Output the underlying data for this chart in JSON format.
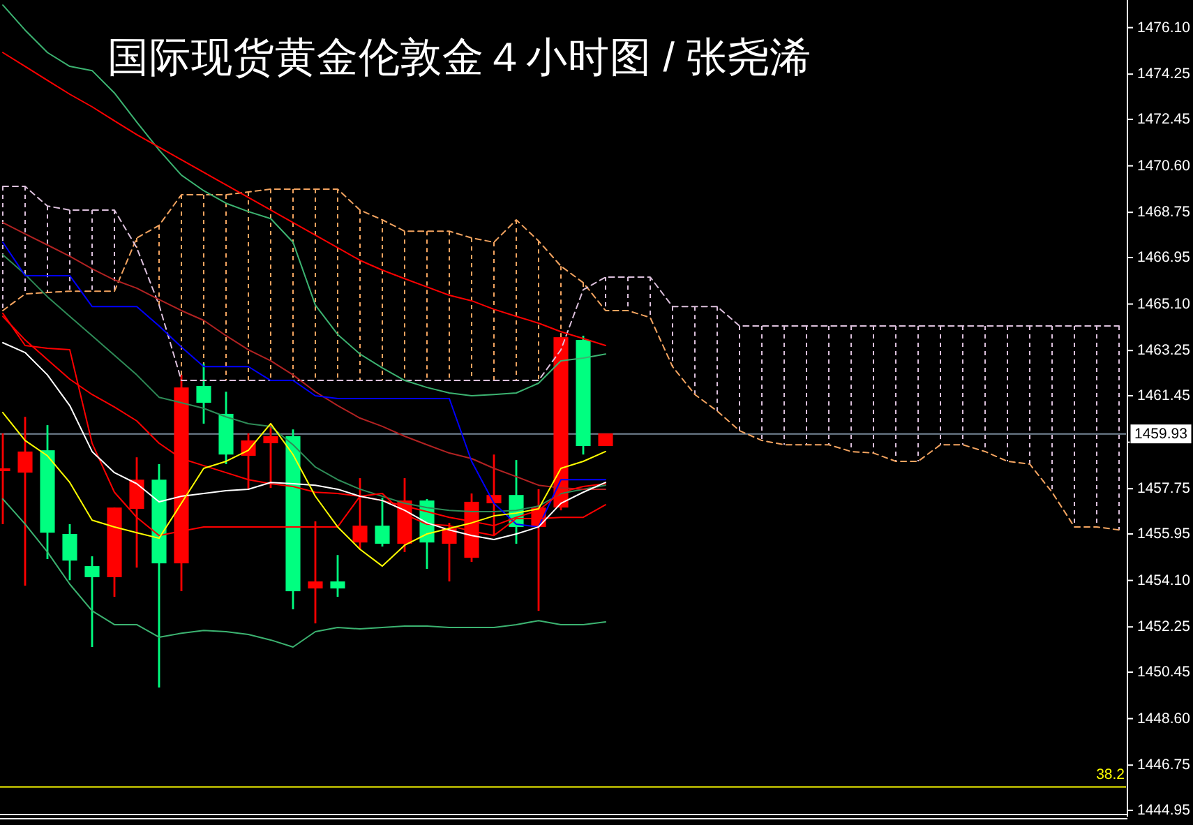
{
  "chart_data": {
    "type": "candlestick",
    "title": "国际现货黄金伦敦金４小时图 / 张尧浠",
    "categories": [
      null,
      null,
      null,
      null,
      null,
      null,
      null,
      null,
      null,
      null,
      null,
      null,
      null,
      null,
      null,
      null,
      null,
      null,
      null,
      null,
      null,
      null,
      null,
      null,
      null,
      null,
      null,
      null,
      null,
      null,
      null,
      null,
      null,
      null,
      null,
      null,
      null,
      null,
      null,
      null,
      null,
      null,
      null,
      null,
      null,
      null,
      null,
      null,
      null,
      null,
      null
    ],
    "ohlc": [
      [
        1458.45,
        1459.95,
        1456.34,
        1458.56
      ],
      [
        1458.39,
        1460.61,
        1453.89,
        1459.23
      ],
      [
        1459.28,
        1460.28,
        1454.95,
        1456.0
      ],
      [
        1455.95,
        1456.34,
        1454.11,
        1454.89
      ],
      [
        1454.67,
        1455.06,
        1451.45,
        1454.23
      ],
      [
        1454.23,
        1457.0,
        1453.45,
        1457.0
      ],
      [
        1456.95,
        1459.0,
        1454.61,
        1458.11
      ],
      [
        1458.11,
        1458.73,
        1449.84,
        1454.78
      ],
      [
        1454.78,
        1462.28,
        1453.67,
        1461.78
      ],
      [
        1461.84,
        1462.73,
        1460.34,
        1461.17
      ],
      [
        1460.73,
        1461.61,
        1458.73,
        1459.11
      ],
      [
        1459.06,
        1459.95,
        1457.73,
        1459.67
      ],
      [
        1459.56,
        1460.34,
        1457.78,
        1459.84
      ],
      [
        1459.84,
        1460.11,
        1452.95,
        1453.67
      ],
      [
        1453.78,
        1456.45,
        1452.39,
        1454.06
      ],
      [
        1454.06,
        1455.11,
        1453.45,
        1453.78
      ],
      [
        1455.61,
        1458.17,
        1455.34,
        1456.28
      ],
      [
        1456.28,
        1457.39,
        1455.45,
        1455.56
      ],
      [
        1455.56,
        1458.17,
        1455.23,
        1457.28
      ],
      [
        1457.28,
        1457.34,
        1454.56,
        1455.61
      ],
      [
        1455.56,
        1456.39,
        1454.06,
        1456.17
      ],
      [
        1455.0,
        1457.56,
        1454.84,
        1457.23
      ],
      [
        1457.17,
        1459.11,
        1455.89,
        1457.5
      ],
      [
        1457.5,
        1458.89,
        1455.56,
        1456.23
      ],
      [
        1456.23,
        1457.73,
        1452.89,
        1457.0
      ],
      [
        1457.0,
        1463.78,
        1456.89,
        1463.78
      ],
      [
        1463.67,
        1463.84,
        1459.11,
        1459.45
      ],
      [
        1459.45,
        1459.95,
        1459.45,
        1459.95
      ],
      null,
      null,
      null,
      null,
      null,
      null,
      null,
      null,
      null,
      null,
      null,
      null,
      null,
      null,
      null,
      null,
      null,
      null,
      null,
      null,
      null,
      null,
      null
    ],
    "colors": [
      "#ff0000",
      "#ff0000",
      "#00ff80",
      "#00ff80",
      "#00ff80",
      "#ff0000",
      "#ff0000",
      "#00ff80",
      "#ff0000",
      "#00ff80",
      "#00ff80",
      "#ff0000",
      "#ff0000",
      "#00ff80",
      "#ff0000",
      "#00ff80",
      "#ff0000",
      "#00ff80",
      "#ff0000",
      "#00ff80",
      "#ff0000",
      "#ff0000",
      "#ff0000",
      "#00ff80",
      "#ff0000",
      "#ff0000",
      "#00ff80",
      "#ff0000",
      null,
      null,
      null,
      null,
      null,
      null,
      null,
      null,
      null,
      null,
      null,
      null,
      null,
      null,
      null,
      null,
      null,
      null,
      null,
      null,
      null,
      null,
      null
    ],
    "ylim": [
      1444.7,
      1477.2
    ],
    "yticks": [
      {
        "value": 1476.1,
        "label": "1476.10"
      },
      {
        "value": 1474.25,
        "label": "1474.25"
      },
      {
        "value": 1472.45,
        "label": "1472.45"
      },
      {
        "value": 1470.6,
        "label": "1470.60"
      },
      {
        "value": 1468.75,
        "label": "1468.75"
      },
      {
        "value": 1466.95,
        "label": "1466.95"
      },
      {
        "value": 1465.1,
        "label": "1465.10"
      },
      {
        "value": 1463.25,
        "label": "1463.25"
      },
      {
        "value": 1461.45,
        "label": "1461.45"
      },
      {
        "value": 1459.6,
        "label": null
      },
      {
        "value": 1457.75,
        "label": "1457.75"
      },
      {
        "value": 1455.95,
        "label": "1455.95"
      },
      {
        "value": 1454.1,
        "label": "1454.10"
      },
      {
        "value": 1452.25,
        "label": "1452.25"
      },
      {
        "value": 1450.45,
        "label": "1450.45"
      },
      {
        "value": 1448.6,
        "label": "1448.60"
      },
      {
        "value": 1446.75,
        "label": "1446.75"
      },
      {
        "value": 1444.95,
        "label": "1444.95"
      }
    ],
    "tick_labels": "y",
    "series": [
      {
        "type": "line",
        "color": "#f4a460",
        "line_style": "dashed",
        "values": [
          1464.84,
          1465.5,
          1465.56,
          1465.61,
          1465.61,
          1465.61,
          1467.73,
          1468.23,
          1469.45,
          1469.45,
          1469.45,
          1469.56,
          1469.67,
          1469.67,
          1469.67,
          1469.67,
          1468.84,
          1468.45,
          1468.0,
          1468.0,
          1468.0,
          1467.73,
          1467.56,
          1468.45,
          1467.61,
          1466.61,
          1465.95,
          1464.84,
          1464.84,
          1464.56,
          1462.61,
          1461.5,
          1460.84,
          1460.06,
          1459.67,
          1459.5,
          1459.5,
          1459.5,
          1459.23,
          1459.17,
          1458.84,
          1458.84,
          1459.5,
          1459.5,
          1459.23,
          1458.84,
          1458.73,
          1457.61,
          1456.23,
          1456.23,
          1456.11
        ]
      },
      {
        "type": "line",
        "color": "#dcc0dc",
        "line_style": "dashed",
        "values": [
          1469.78,
          1469.78,
          1469.0,
          1468.84,
          1468.84,
          1468.84,
          1467.34,
          1465.06,
          1462.06,
          1462.06,
          1462.06,
          1462.06,
          1462.06,
          1462.06,
          1462.06,
          1462.06,
          1462.06,
          1462.06,
          1462.06,
          1462.06,
          1462.06,
          1462.06,
          1462.06,
          1462.06,
          1462.06,
          1463.28,
          1465.67,
          1466.17,
          1466.17,
          1466.17,
          1465.0,
          1465.0,
          1465.0,
          1464.23,
          1464.23,
          1464.23,
          1464.23,
          1464.23,
          1464.23,
          1464.23,
          1464.23,
          1464.23,
          1464.23,
          1464.23,
          1464.23,
          1464.23,
          1464.23,
          1464.23,
          1464.23,
          1464.23,
          1464.23
        ]
      },
      {
        "type": "line",
        "color": "#3cb371",
        "values": [
          1477.0,
          1476.0,
          1475.11,
          1474.56,
          1474.39,
          1473.5,
          1472.34,
          1471.23,
          1470.23,
          1469.61,
          1469.11,
          1468.78,
          1468.5,
          1467.56,
          1465.06,
          1463.89,
          1463.11,
          1462.56,
          1462.06,
          1461.78,
          1461.56,
          1461.45,
          1461.5,
          1461.56,
          1461.95,
          1462.84,
          1462.95,
          1463.11,
          null,
          null,
          null,
          null,
          null,
          null,
          null,
          null,
          null,
          null,
          null,
          null,
          null,
          null,
          null,
          null,
          null,
          null,
          null,
          null,
          null,
          null,
          null
        ]
      },
      {
        "type": "line",
        "color": "#2e8b57",
        "values": [
          1467.06,
          1466.28,
          1465.39,
          1464.61,
          1463.84,
          1463.06,
          1462.28,
          1461.39,
          1461.17,
          1460.95,
          1460.61,
          1460.34,
          1460.23,
          1459.5,
          1458.61,
          1458.11,
          1457.73,
          1457.45,
          1457.17,
          1457.0,
          1456.89,
          1456.84,
          1456.84,
          1456.89,
          1457.06,
          1457.56,
          1457.73,
          1457.89,
          null,
          null,
          null,
          null,
          null,
          null,
          null,
          null,
          null,
          null,
          null,
          null,
          null,
          null,
          null,
          null,
          null,
          null,
          null,
          null,
          null,
          null,
          null
        ]
      },
      {
        "type": "line",
        "color": "#3cb371",
        "values": [
          1457.34,
          1456.34,
          1455.23,
          1453.95,
          1452.89,
          1452.34,
          1452.34,
          1451.84,
          1452.0,
          1452.11,
          1452.06,
          1451.95,
          1451.73,
          1451.45,
          1452.06,
          1452.23,
          1452.17,
          1452.23,
          1452.28,
          1452.28,
          1452.23,
          1452.23,
          1452.23,
          1452.34,
          1452.5,
          1452.34,
          1452.34,
          1452.45,
          null,
          null,
          null,
          null,
          null,
          null,
          null,
          null,
          null,
          null,
          null,
          null,
          null,
          null,
          null,
          null,
          null,
          null,
          null,
          null,
          null,
          null,
          null
        ]
      },
      {
        "type": "line",
        "color": "#ff0000",
        "values": [
          1475.11,
          1474.56,
          1474.0,
          1473.45,
          1472.95,
          1472.39,
          1471.84,
          1471.34,
          1470.84,
          1470.34,
          1469.84,
          1469.34,
          1468.84,
          1468.34,
          1467.84,
          1467.34,
          1466.84,
          1466.45,
          1466.11,
          1465.78,
          1465.45,
          1465.23,
          1464.89,
          1464.61,
          1464.34,
          1464.0,
          1463.73,
          1463.45,
          null,
          null,
          null,
          null,
          null,
          null,
          null,
          null,
          null,
          null,
          null,
          null,
          null,
          null,
          null,
          null,
          null,
          null,
          null,
          null,
          null,
          null,
          null
        ]
      },
      {
        "type": "line",
        "color": "#b22222",
        "values": [
          1468.34,
          1467.89,
          1467.45,
          1467.0,
          1466.5,
          1466.06,
          1465.73,
          1465.28,
          1464.84,
          1464.45,
          1463.84,
          1463.28,
          1462.84,
          1462.28,
          1461.61,
          1461.06,
          1460.56,
          1460.23,
          1459.84,
          1459.5,
          1459.17,
          1458.95,
          1458.56,
          1458.23,
          1457.89,
          1457.78,
          1457.73,
          1457.73,
          null,
          null,
          null,
          null,
          null,
          null,
          null,
          null,
          null,
          null,
          null,
          null,
          null,
          null,
          null,
          null,
          null,
          null,
          null,
          null,
          null,
          null,
          null
        ]
      },
      {
        "type": "line",
        "color": "#0000ff",
        "values": [
          1467.56,
          1466.23,
          1466.23,
          1466.23,
          1465.0,
          1465.0,
          1465.0,
          1464.23,
          1463.39,
          1462.61,
          1462.61,
          1462.61,
          1462.06,
          1462.06,
          1461.45,
          1461.34,
          1461.34,
          1461.34,
          1461.34,
          1461.34,
          1461.34,
          1458.84,
          1457.17,
          1456.34,
          1456.23,
          1458.11,
          1458.11,
          1458.11,
          null,
          null,
          null,
          null,
          null,
          null,
          null,
          null,
          null,
          null,
          null,
          null,
          null,
          null,
          null,
          null,
          null,
          null,
          null,
          null,
          null,
          null,
          null
        ]
      },
      {
        "type": "line",
        "color": "#ff0000",
        "values": [
          1464.73,
          1463.45,
          1463.34,
          1463.28,
          1459.56,
          1457.61,
          1456.61,
          1455.89,
          1456.06,
          1456.23,
          1456.23,
          1456.23,
          1456.23,
          1456.23,
          1456.23,
          1456.23,
          1457.45,
          1457.56,
          1456.73,
          1456.34,
          1456.28,
          1456.06,
          1455.89,
          1456.56,
          1456.56,
          1456.61,
          1456.61,
          1457.11,
          null,
          null,
          null,
          null,
          null,
          null,
          null,
          null,
          null,
          null,
          null,
          null,
          null,
          null,
          null,
          null,
          null,
          null,
          null,
          null,
          null,
          null,
          null
        ]
      },
      {
        "type": "line",
        "color": "#ff0000",
        "values": [
          1464.61,
          1463.67,
          1462.89,
          1462.11,
          1461.5,
          1461.0,
          1460.45,
          1459.56,
          1458.95,
          1458.67,
          1458.39,
          1458.11,
          1457.95,
          1457.84,
          1457.61,
          1457.56,
          1457.45,
          1457.28,
          1457.06,
          1456.84,
          1456.61,
          1456.45,
          1456.28,
          1456.61,
          1456.89,
          1457.61,
          1457.84,
          1457.95,
          null,
          null,
          null,
          null,
          null,
          null,
          null,
          null,
          null,
          null,
          null,
          null,
          null,
          null,
          null,
          null,
          null,
          null,
          null,
          null,
          null,
          null,
          null
        ]
      },
      {
        "type": "line",
        "color": "#ffffff",
        "values": [
          1463.56,
          1463.17,
          1462.28,
          1461.06,
          1459.23,
          1458.39,
          1457.95,
          1457.23,
          1457.45,
          1457.56,
          1457.67,
          1457.73,
          1458.0,
          1457.95,
          1457.89,
          1457.73,
          1457.45,
          1457.28,
          1456.89,
          1456.39,
          1456.11,
          1455.89,
          1455.73,
          1455.95,
          1456.23,
          1457.17,
          1457.61,
          1458.0,
          null,
          null,
          null,
          null,
          null,
          null,
          null,
          null,
          null,
          null,
          null,
          null,
          null,
          null,
          null,
          null,
          null,
          null,
          null,
          null,
          null,
          null,
          null
        ]
      },
      {
        "type": "line",
        "color": "#ffff00",
        "values": [
          1460.78,
          1459.67,
          1459.06,
          1458.0,
          1456.5,
          1456.23,
          1456.0,
          1455.78,
          1457.17,
          1458.56,
          1458.84,
          1459.28,
          1460.34,
          1459.11,
          1457.45,
          1456.23,
          1455.34,
          1454.67,
          1455.5,
          1455.95,
          1456.17,
          1456.39,
          1456.67,
          1456.78,
          1456.95,
          1458.56,
          1458.84,
          1459.23,
          null,
          null,
          null,
          null,
          null,
          null,
          null,
          null,
          null,
          null,
          null,
          null,
          null,
          null,
          null,
          null,
          null,
          null,
          null,
          null,
          null,
          null,
          null
        ]
      }
    ],
    "ref_lines": [
      {
        "axis": "y",
        "value": 1459.93,
        "label": "1459.93",
        "color": "#778899"
      },
      {
        "axis": "y",
        "value": 1445.88,
        "color": "#ffff00"
      }
    ],
    "annotations": [
      {
        "text": "38.2",
        "y": 1445.88
      }
    ],
    "grid": false
  }
}
